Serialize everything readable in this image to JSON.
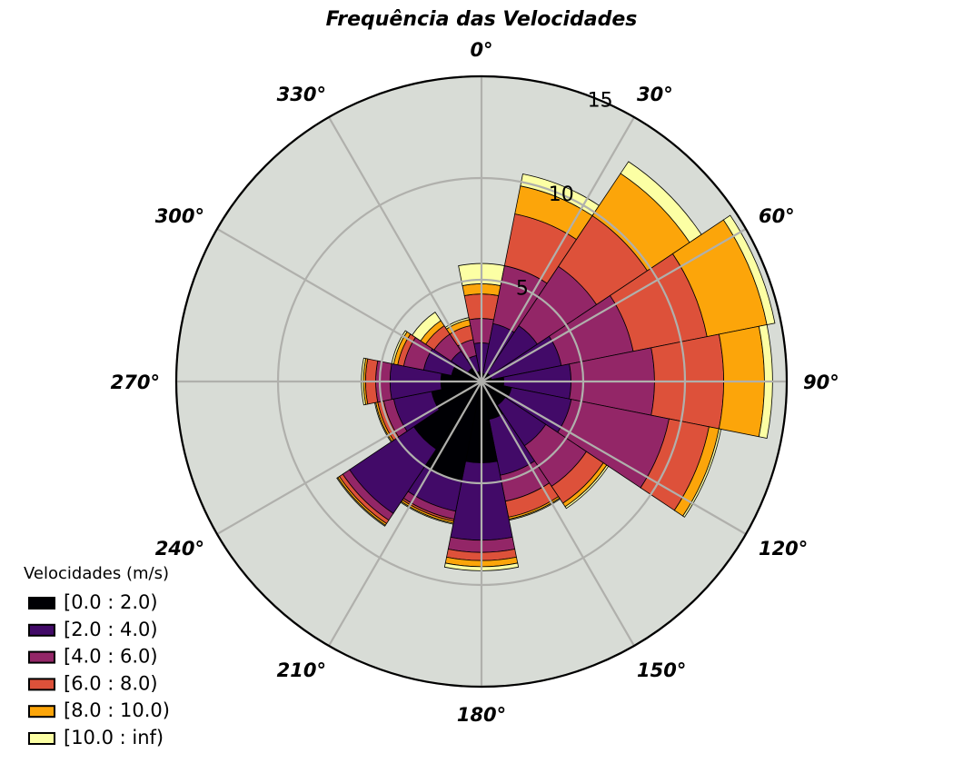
{
  "chart_data": {
    "type": "windrose",
    "title": "Frequência das Velocidades",
    "direction_labels": [
      "0°",
      "30°",
      "60°",
      "90°",
      "120°",
      "150°",
      "180°",
      "210°",
      "240°",
      "270°",
      "300°",
      "330°"
    ],
    "radial_ticks": [
      "5",
      "10",
      "15"
    ],
    "radial_tick_values": [
      5,
      10,
      15
    ],
    "rmax": 15.0,
    "sector_directions": [
      0,
      22.5,
      45,
      67.5,
      90,
      112.5,
      135,
      157.5,
      180,
      202.5,
      225,
      247.5,
      270,
      292.5,
      315,
      337.5
    ],
    "legend_title": "Velocidades (m/s)",
    "legend_location": "lower-left",
    "grid": true,
    "colors": {
      "background": "#d8dcd6",
      "grid": "#b0b0ac",
      "edge": "#000000"
    },
    "series": [
      {
        "name": "[0.0 : 2.0)",
        "color": "#000004",
        "values": [
          0.4,
          0.4,
          0.5,
          0.5,
          1.1,
          1.5,
          1.4,
          1.9,
          4.0,
          5.0,
          4.0,
          2.5,
          2.0,
          1.5,
          0.8,
          0.5
        ]
      },
      {
        "name": "[2.0 : 4.0)",
        "color": "#420a68",
        "values": [
          1.5,
          2.5,
          2.8,
          3.5,
          3.3,
          3.0,
          2.4,
          2.8,
          3.8,
          1.5,
          3.8,
          1.9,
          2.5,
          1.4,
          1.0,
          0.8
        ]
      },
      {
        "name": "[4.0 : 6.0)",
        "color": "#932667",
        "values": [
          1.2,
          2.9,
          3.5,
          3.6,
          4.1,
          4.9,
          2.4,
          1.3,
          0.6,
          0.4,
          0.4,
          0.5,
          0.7,
          1.0,
          1.0,
          0.8
        ]
      },
      {
        "name": "[6.0 : 8.0)",
        "color": "#dd513a",
        "values": [
          1.2,
          2.6,
          3.0,
          3.7,
          3.4,
          2.0,
          1.0,
          0.8,
          0.4,
          0.1,
          0.2,
          0.3,
          0.5,
          0.3,
          0.5,
          0.7
        ]
      },
      {
        "name": "[8.0 : 10.0)",
        "color": "#fca50a",
        "values": [
          0.5,
          1.4,
          2.5,
          3.0,
          2.0,
          0.5,
          0.2,
          0.1,
          0.3,
          0.1,
          0.1,
          0.1,
          0.1,
          0.2,
          0.3,
          0.3
        ]
      },
      {
        "name": "[10.0 : inf)",
        "color": "#fcffa4",
        "values": [
          1.0,
          0.6,
          0.7,
          0.4,
          0.4,
          0.1,
          0.1,
          0.05,
          0.2,
          0.05,
          0.05,
          0.05,
          0.1,
          0.1,
          0.5,
          0.1
        ]
      }
    ]
  }
}
